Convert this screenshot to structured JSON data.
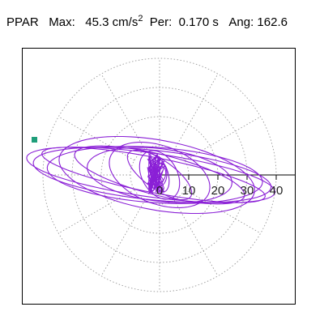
{
  "header": {
    "component": "PPAR",
    "max_label": "Max:",
    "max_value": "45.3",
    "max_unit": "cm/s",
    "max_unit_exponent": "2",
    "per_label": "Per:",
    "per_value": "0.170 s",
    "ang_label": "Ang:",
    "ang_value": "162.6"
  },
  "plot": {
    "radial_ticks": [
      "0",
      "10",
      "20",
      "30",
      "40"
    ],
    "trace_color": "#8a1fd6",
    "grid_color": "#999999",
    "marker_color": "#1f9e7a"
  }
}
